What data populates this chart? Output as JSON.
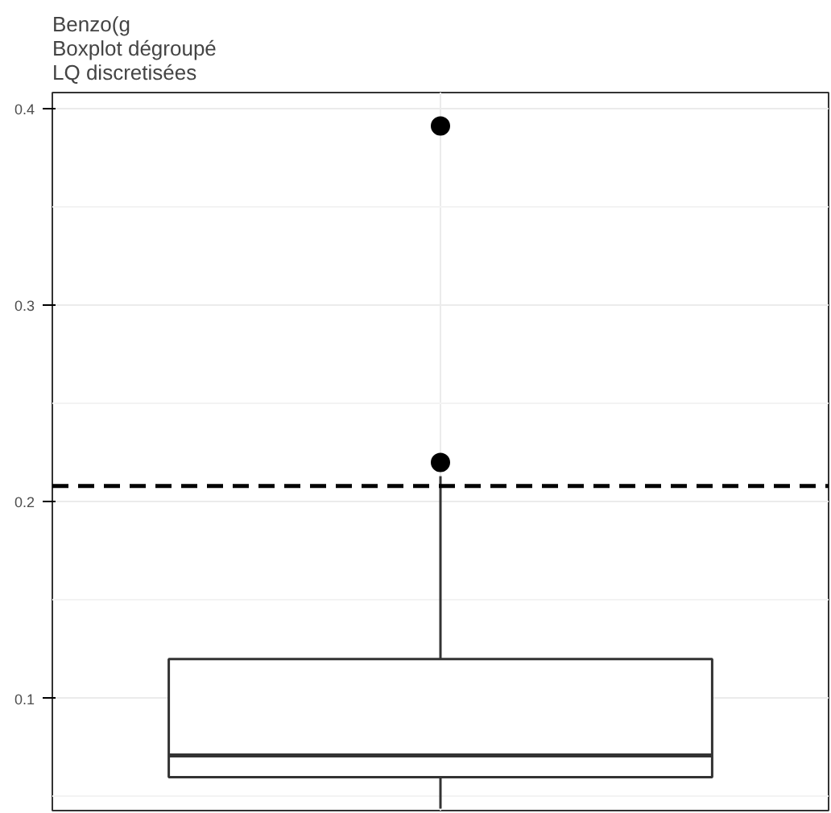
{
  "chart_data": {
    "type": "box",
    "title": "Benzo(g\n Boxplot dégroupé\n LQ discretisées",
    "categories": [
      null
    ],
    "boxes": [
      {
        "low": 0.044,
        "q1": 0.06,
        "median": 0.071,
        "q3": 0.12,
        "high": 0.213,
        "outliers": [
          0.22,
          0.391
        ]
      }
    ],
    "ylim": [
      0.043,
      0.408
    ],
    "yticks": [
      0.1,
      0.2,
      0.3,
      0.4
    ],
    "tick_labels": "y",
    "grid": true,
    "ref_lines": [
      {
        "axis": "y",
        "value": 0.208,
        "color": "#000000",
        "line_style": "dashed"
      }
    ]
  }
}
